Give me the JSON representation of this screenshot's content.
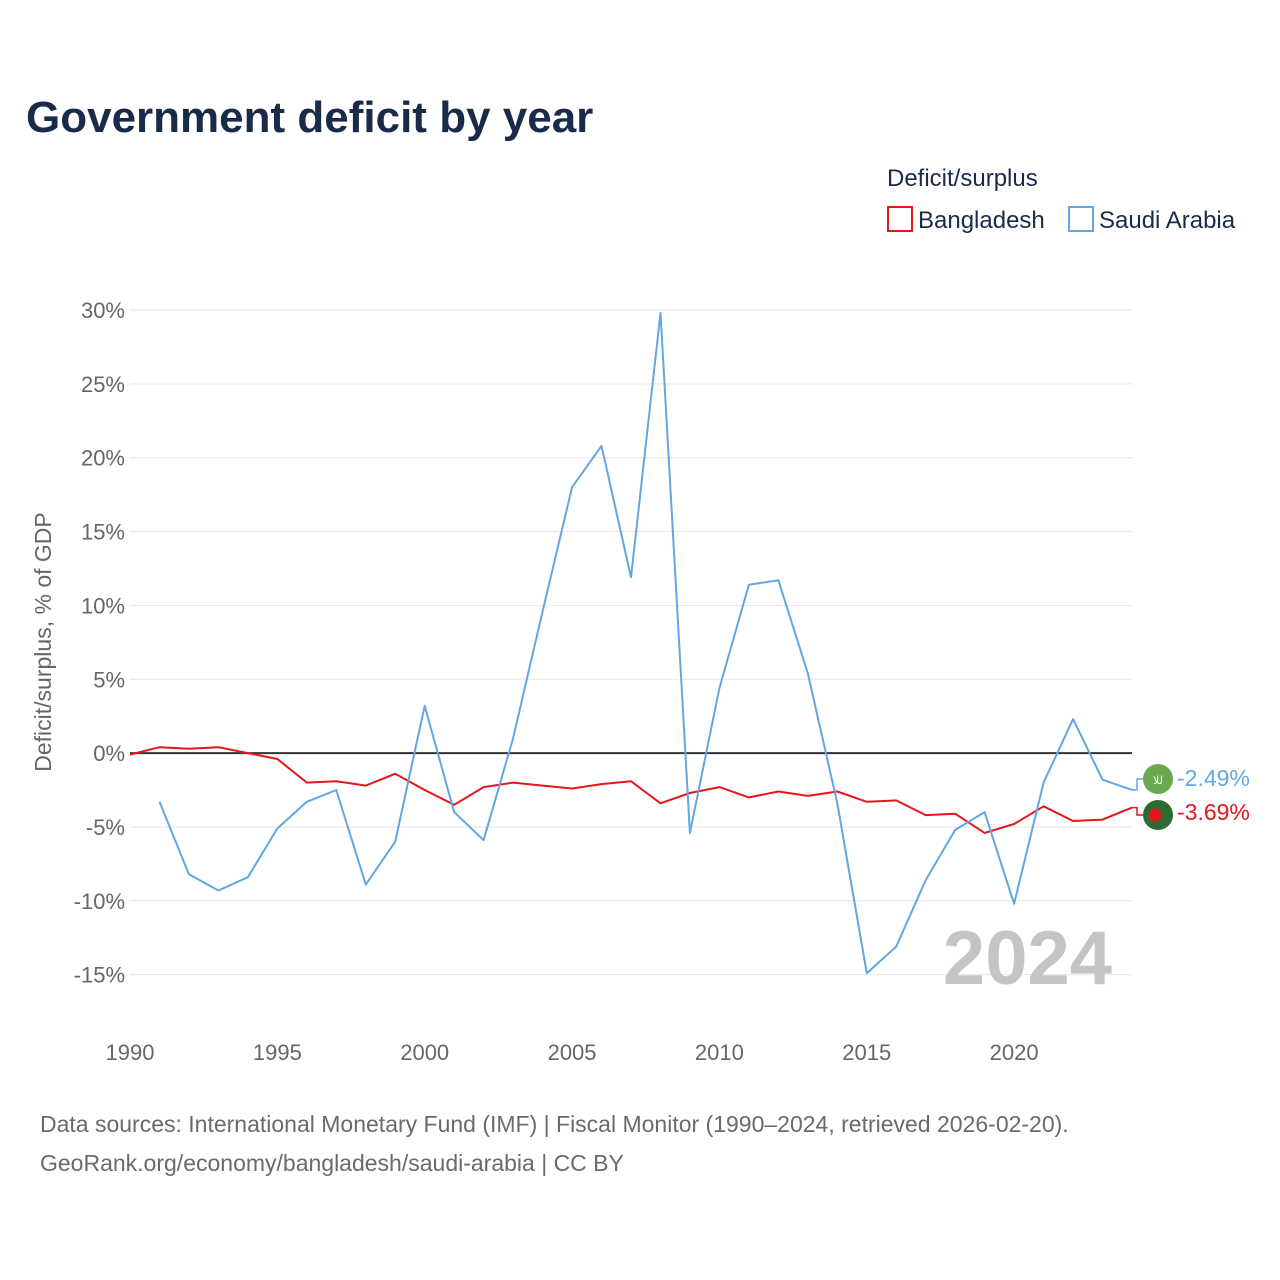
{
  "title": "Government deficit by year",
  "legend": {
    "title": "Deficit/surplus",
    "items": [
      {
        "label": "Bangladesh",
        "color": "#e3171c"
      },
      {
        "label": "Saudi Arabia",
        "color": "#62a6e3"
      }
    ]
  },
  "year_label": "2024",
  "source_lines": [
    "Data sources: International Monetary Fund (IMF) | Fiscal Monitor (1990–2024, retrieved 2026-02-20).",
    "GeoRank.org/economy/bangladesh/saudi-arabia | CC BY"
  ],
  "end_labels": [
    {
      "text": "-2.49%",
      "color": "#62a6e3",
      "flag": "saudi-arabia-flag-icon",
      "flag_color": "#6aa84f",
      "flag_glyph": "للا"
    },
    {
      "text": "-3.69%",
      "color": "#e3171c",
      "flag": "bangladesh-flag-icon",
      "flag_color": "#2e6b32",
      "dot_color": "#e3171c"
    }
  ],
  "chart_data": {
    "type": "line",
    "title": "Government deficit by year",
    "xlabel": "",
    "ylabel": "Deficit/surplus, % of GDP",
    "xlim": [
      1990,
      2024
    ],
    "ylim": [
      -18,
      31
    ],
    "x_ticks": [
      1990,
      1995,
      2000,
      2005,
      2010,
      2015,
      2020
    ],
    "y_ticks": [
      30,
      25,
      20,
      15,
      10,
      5,
      0,
      -5,
      -10,
      -15
    ],
    "y_tick_labels": [
      "30%",
      "25%",
      "20%",
      "15%",
      "10%",
      "5%",
      "0%",
      "-5%",
      "-10%",
      "-15%"
    ],
    "series": [
      {
        "name": "Bangladesh",
        "color": "#e3171c",
        "x": [
          1990,
          1991,
          1992,
          1993,
          1994,
          1995,
          1996,
          1997,
          1998,
          1999,
          2000,
          2001,
          2002,
          2003,
          2004,
          2005,
          2006,
          2007,
          2008,
          2009,
          2010,
          2011,
          2012,
          2013,
          2014,
          2015,
          2016,
          2017,
          2018,
          2019,
          2020,
          2021,
          2022,
          2023,
          2024
        ],
        "values": [
          -0.1,
          0.4,
          0.3,
          0.4,
          0.0,
          -0.4,
          -2.0,
          -1.9,
          -2.2,
          -1.4,
          -2.5,
          -3.5,
          -2.3,
          -2.0,
          -2.2,
          -2.4,
          -2.1,
          -1.9,
          -3.4,
          -2.7,
          -2.3,
          -3.0,
          -2.6,
          -2.9,
          -2.6,
          -3.3,
          -3.2,
          -4.2,
          -4.1,
          -5.4,
          -4.8,
          -3.6,
          -4.6,
          -4.5,
          -3.69
        ]
      },
      {
        "name": "Saudi Arabia",
        "color": "#62a6e3",
        "x": [
          1991,
          1992,
          1993,
          1994,
          1995,
          1996,
          1997,
          1998,
          1999,
          2000,
          2001,
          2002,
          2003,
          2004,
          2005,
          2006,
          2007,
          2008,
          2009,
          2010,
          2011,
          2012,
          2013,
          2014,
          2015,
          2016,
          2017,
          2018,
          2019,
          2020,
          2021,
          2022,
          2023,
          2024
        ],
        "values": [
          -3.3,
          -8.2,
          -9.3,
          -8.4,
          -5.1,
          -3.3,
          -2.5,
          -8.9,
          -6.0,
          3.2,
          -4.0,
          -5.9,
          1.0,
          9.6,
          18.0,
          20.8,
          11.9,
          29.8,
          -5.4,
          4.4,
          11.4,
          11.7,
          5.4,
          -3.4,
          -14.9,
          -13.1,
          -8.6,
          -5.2,
          -4.0,
          -10.2,
          -2.0,
          2.3,
          -1.8,
          -2.49
        ]
      }
    ]
  }
}
